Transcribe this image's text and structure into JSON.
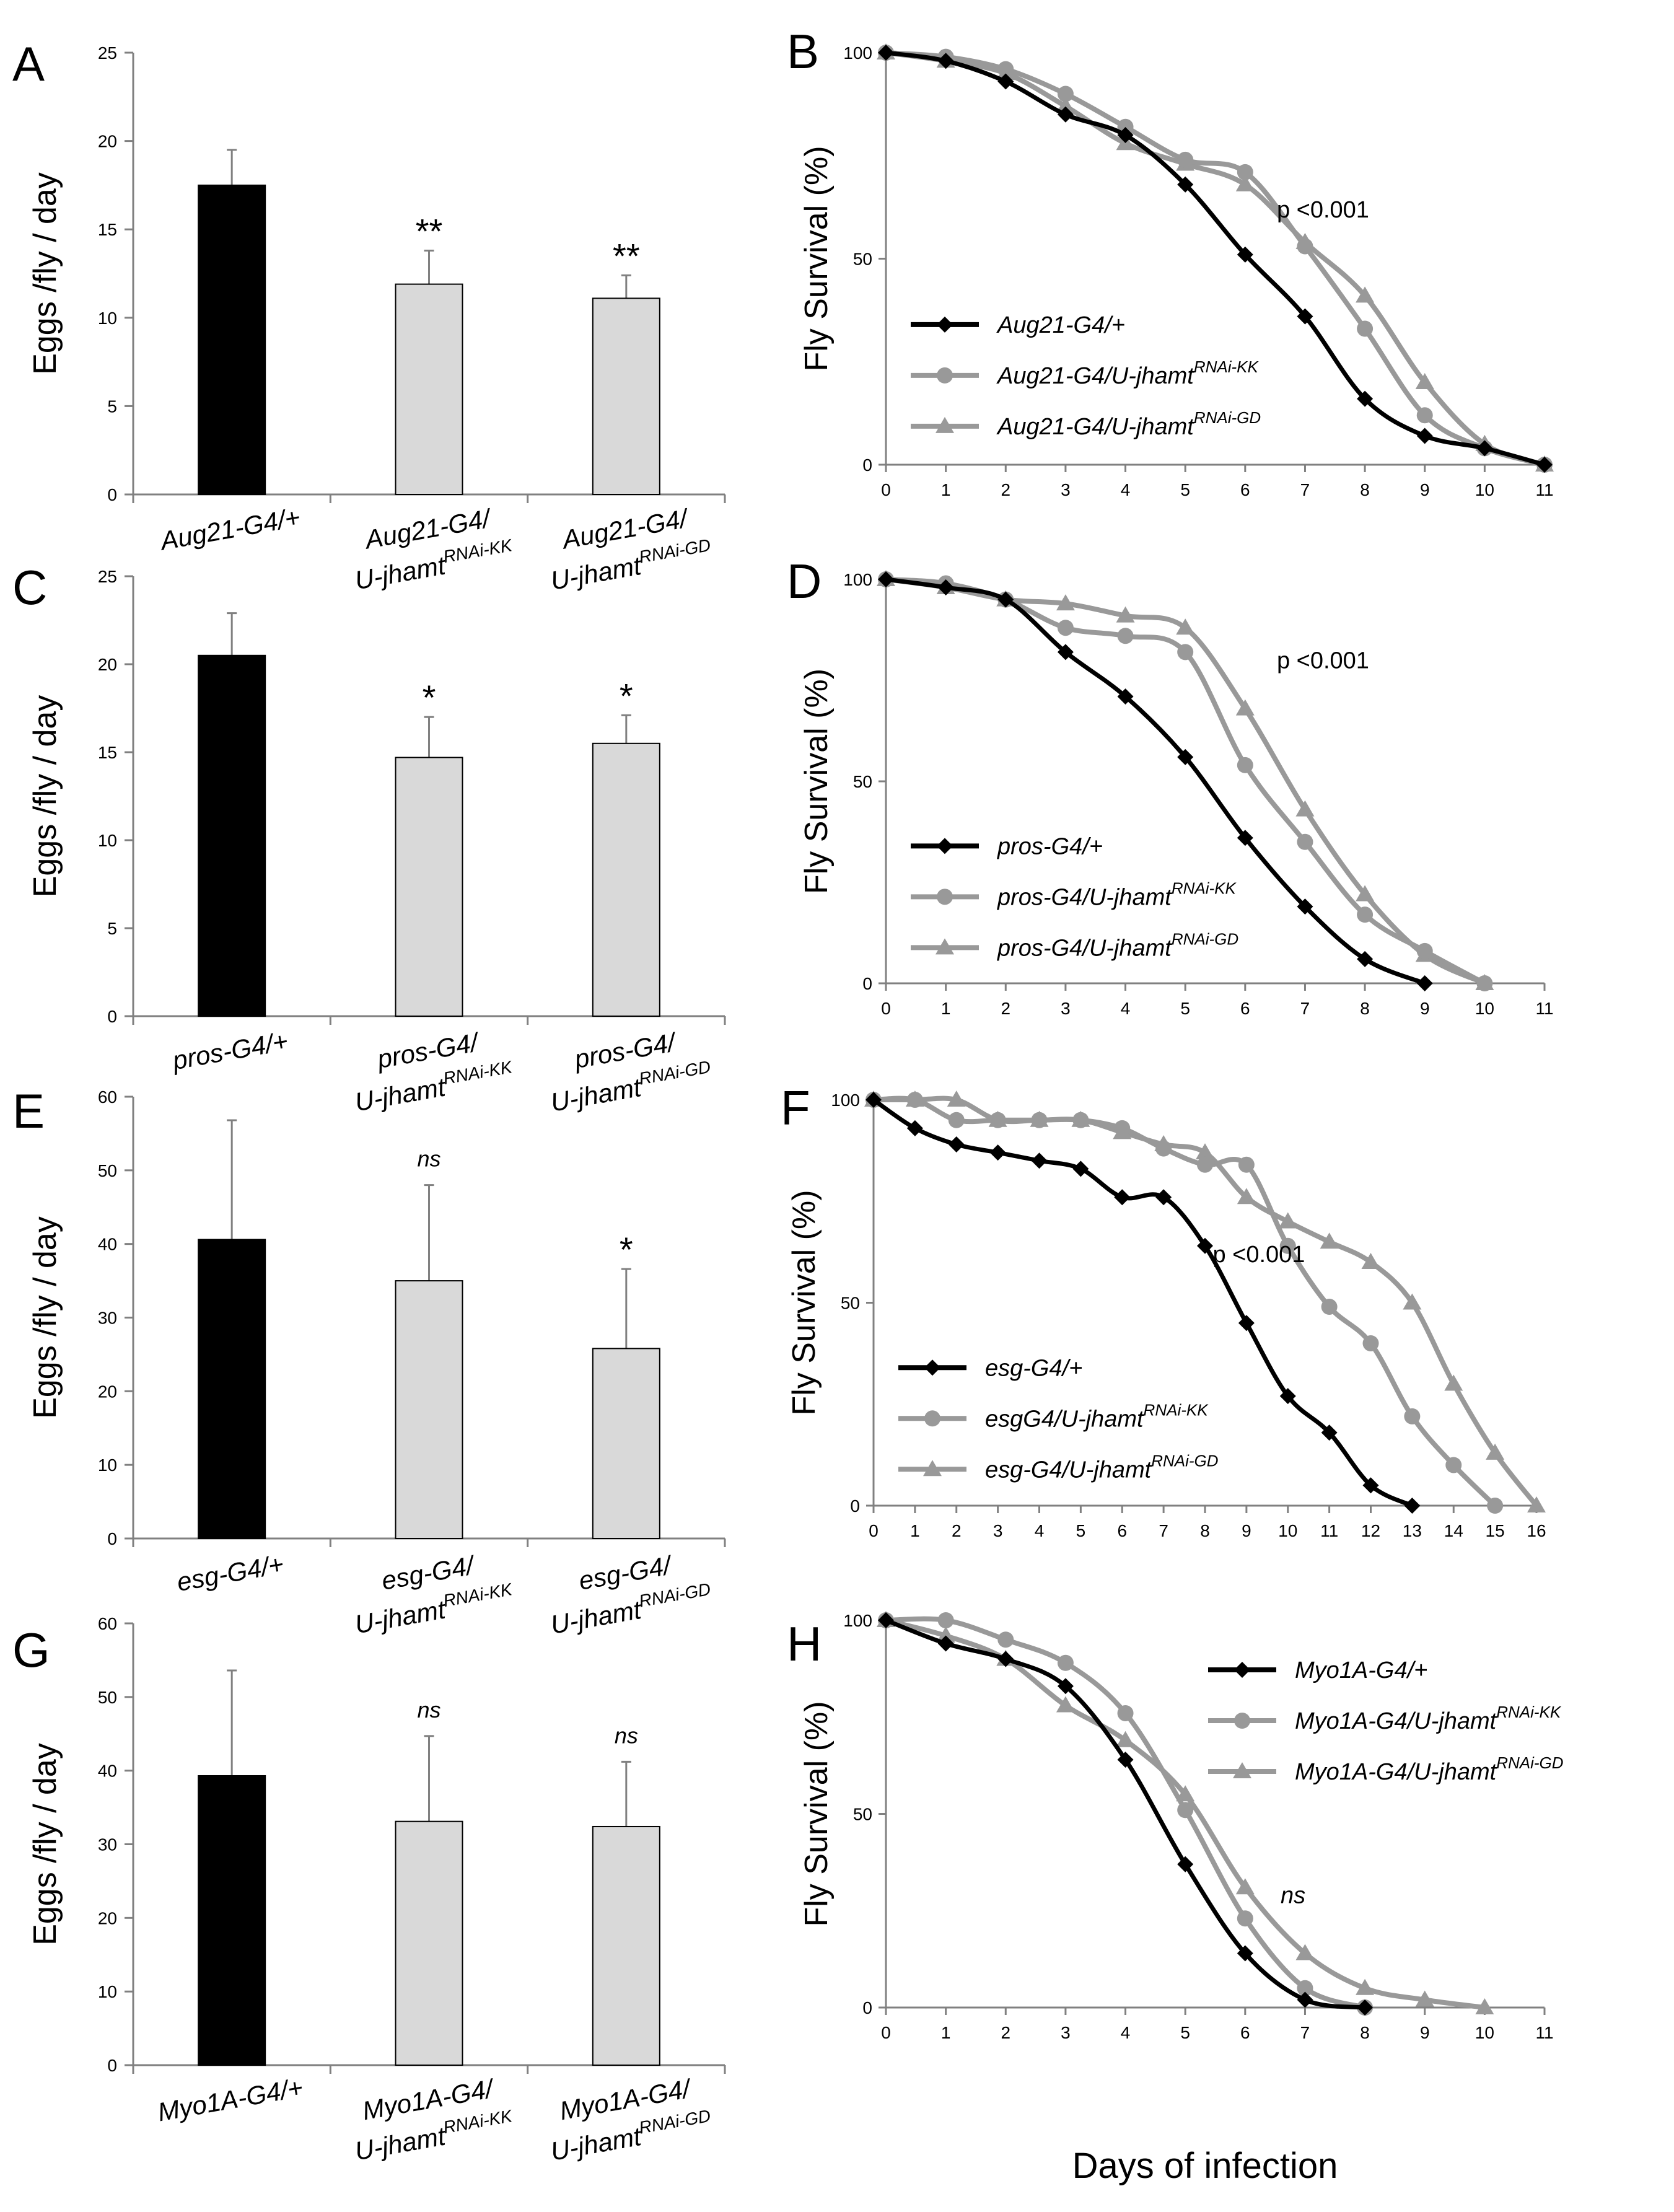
{
  "figure": {
    "x_axis_title": "Days of infection",
    "colors": {
      "control": "#000000",
      "kk": "#999999",
      "gd": "#999999",
      "bar_ctrl": "#000000",
      "bar_light": "#d9d9d9",
      "axis": "#808080"
    }
  },
  "chart_data": [
    {
      "type": "bar",
      "panel": "A",
      "title": "",
      "ylabel": "Eggs /fly / day",
      "xlabel": "",
      "ylim": [
        0,
        25
      ],
      "yticks": [
        0,
        5,
        10,
        15,
        20,
        25
      ],
      "categories": [
        {
          "line1": "Aug21-G4/+",
          "line2": "",
          "line2_sup": ""
        },
        {
          "line1": "Aug21-G4/",
          "line2": "U-jhamt",
          "line2_sup": "RNAi-KK"
        },
        {
          "line1": "Aug21-G4/",
          "line2": "U-jhamt",
          "line2_sup": "RNAi-GD"
        }
      ],
      "values": [
        17.5,
        11.9,
        11.1
      ],
      "errors": [
        2.0,
        1.9,
        1.3
      ],
      "significance": [
        "",
        "**",
        "**"
      ]
    },
    {
      "type": "line",
      "panel": "B",
      "title": "",
      "ylabel": "Fly Survival (%)",
      "xlabel": "",
      "ylim": [
        0,
        100
      ],
      "yticks": [
        0,
        50,
        100
      ],
      "xlim": [
        0,
        11
      ],
      "xticks": [
        0,
        1,
        2,
        3,
        4,
        5,
        6,
        7,
        8,
        9,
        10,
        11
      ],
      "annotation": "p <0.001",
      "legend_position": "bottom-left",
      "series": [
        {
          "name": "Aug21-G4/+",
          "sup": "",
          "marker": "diamond",
          "x": [
            0,
            1,
            2,
            3,
            4,
            5,
            6,
            7,
            8,
            9,
            10,
            11
          ],
          "values": [
            100,
            98,
            93,
            85,
            80,
            68,
            51,
            36,
            16,
            7,
            4,
            0
          ]
        },
        {
          "name": "Aug21-G4/U-jhamt",
          "sup": "RNAi-KK",
          "marker": "circle",
          "x": [
            0,
            1,
            2,
            3,
            4,
            5,
            6,
            7,
            8,
            9,
            10,
            11
          ],
          "values": [
            100,
            99,
            96,
            90,
            82,
            74,
            71,
            53,
            33,
            12,
            4,
            0
          ]
        },
        {
          "name": "Aug21-G4/U-jhamt",
          "sup": "RNAi-GD",
          "marker": "triangle",
          "x": [
            0,
            1,
            2,
            3,
            4,
            5,
            6,
            7,
            8,
            9,
            10,
            11
          ],
          "values": [
            100,
            98,
            95,
            87,
            78,
            73,
            68,
            54,
            41,
            20,
            5,
            0
          ]
        }
      ]
    },
    {
      "type": "bar",
      "panel": "C",
      "title": "",
      "ylabel": "Eggs /fly / day",
      "xlabel": "",
      "ylim": [
        0,
        25
      ],
      "yticks": [
        0,
        5,
        10,
        15,
        20,
        25
      ],
      "categories": [
        {
          "line1": "pros-G4/+",
          "line2": "",
          "line2_sup": ""
        },
        {
          "line1": "pros-G4/",
          "line2": "U-jhamt",
          "line2_sup": "RNAi-KK"
        },
        {
          "line1": "pros-G4/",
          "line2": "U-jhamt",
          "line2_sup": "RNAi-GD"
        }
      ],
      "values": [
        20.5,
        14.7,
        15.5
      ],
      "errors": [
        2.4,
        2.3,
        1.6
      ],
      "significance": [
        "",
        "*",
        "*"
      ]
    },
    {
      "type": "line",
      "panel": "D",
      "title": "",
      "ylabel": "Fly Survival (%)",
      "xlabel": "",
      "ylim": [
        0,
        100
      ],
      "yticks": [
        0,
        50,
        100
      ],
      "xlim": [
        0,
        11
      ],
      "xticks": [
        0,
        1,
        2,
        3,
        4,
        5,
        6,
        7,
        8,
        9,
        10,
        11
      ],
      "annotation": "p <0.001",
      "legend_position": "bottom-left",
      "series": [
        {
          "name": "pros-G4/+",
          "sup": "",
          "marker": "diamond",
          "x": [
            0,
            1,
            2,
            3,
            4,
            5,
            6,
            7,
            8,
            9
          ],
          "values": [
            100,
            98,
            95,
            82,
            71,
            56,
            36,
            19,
            6,
            0
          ]
        },
        {
          "name": "pros-G4/U-jhamt",
          "sup": "RNAi-KK",
          "marker": "circle",
          "x": [
            0,
            1,
            2,
            3,
            4,
            5,
            6,
            7,
            8,
            9,
            10
          ],
          "values": [
            100,
            99,
            95,
            88,
            86,
            82,
            54,
            35,
            17,
            8,
            0
          ]
        },
        {
          "name": "pros-G4/U-jhamt",
          "sup": "RNAi-GD",
          "marker": "triangle",
          "x": [
            0,
            1,
            2,
            3,
            4,
            5,
            6,
            7,
            8,
            9,
            10
          ],
          "values": [
            100,
            98,
            95,
            94,
            91,
            88,
            68,
            43,
            22,
            7,
            0
          ]
        }
      ]
    },
    {
      "type": "bar",
      "panel": "E",
      "title": "",
      "ylabel": "Eggs /fly / day",
      "xlabel": "",
      "ylim": [
        0,
        60
      ],
      "yticks": [
        0,
        10,
        20,
        30,
        40,
        50,
        60
      ],
      "categories": [
        {
          "line1": "esg-G4/+",
          "line2": "",
          "line2_sup": ""
        },
        {
          "line1": "esg-G4/",
          "line2": "U-jhamt",
          "line2_sup": "RNAi-KK"
        },
        {
          "line1": "esg-G4/",
          "line2": "U-jhamt",
          "line2_sup": "RNAi-GD"
        }
      ],
      "values": [
        40.6,
        35.0,
        25.8
      ],
      "errors": [
        16.2,
        13.0,
        10.8
      ],
      "significance": [
        "",
        "ns",
        "*"
      ]
    },
    {
      "type": "line",
      "panel": "F",
      "title": "",
      "ylabel": "Fly Survival (%)",
      "xlabel": "",
      "ylim": [
        0,
        100
      ],
      "yticks": [
        0,
        50,
        100
      ],
      "xlim": [
        0,
        16
      ],
      "xticks": [
        0,
        1,
        2,
        3,
        4,
        5,
        6,
        7,
        8,
        9,
        10,
        11,
        12,
        13,
        14,
        15,
        16
      ],
      "annotation": "p <0.001",
      "legend_position": "bottom-left",
      "series": [
        {
          "name": "esg-G4/+",
          "sup": "",
          "marker": "diamond",
          "x": [
            0,
            1,
            2,
            3,
            4,
            5,
            6,
            7,
            8,
            9,
            10,
            11,
            12,
            13
          ],
          "values": [
            100,
            93,
            89,
            87,
            85,
            83,
            76,
            76,
            64,
            45,
            27,
            18,
            5,
            0
          ]
        },
        {
          "name": "esgG4/U-jhamt",
          "sup": "RNAi-KK",
          "marker": "circle",
          "x": [
            0,
            1,
            2,
            3,
            4,
            5,
            6,
            7,
            8,
            9,
            10,
            11,
            12,
            13,
            14,
            15
          ],
          "values": [
            100,
            100,
            95,
            95,
            95,
            95,
            93,
            88,
            84,
            84,
            64,
            49,
            40,
            22,
            10,
            0
          ]
        },
        {
          "name": "esg-G4/U-jhamt",
          "sup": "RNAi-GD",
          "marker": "triangle",
          "x": [
            0,
            1,
            2,
            3,
            4,
            5,
            6,
            7,
            8,
            9,
            10,
            11,
            12,
            13,
            14,
            15,
            16
          ],
          "values": [
            100,
            100,
            100,
            95,
            95,
            95,
            92,
            89,
            87,
            76,
            70,
            65,
            60,
            50,
            30,
            13,
            0
          ]
        }
      ]
    },
    {
      "type": "bar",
      "panel": "G",
      "title": "",
      "ylabel": "Eggs /fly / day",
      "xlabel": "",
      "ylim": [
        0,
        60
      ],
      "yticks": [
        0,
        10,
        20,
        30,
        40,
        50,
        60
      ],
      "categories": [
        {
          "line1": "Myo1A-G4/+",
          "line2": "",
          "line2_sup": ""
        },
        {
          "line1": "Myo1A-G4/",
          "line2": "U-jhamt",
          "line2_sup": "RNAi-KK"
        },
        {
          "line1": "Myo1A-G4/",
          "line2": "U-jhamt",
          "line2_sup": "RNAi-GD"
        }
      ],
      "values": [
        39.3,
        33.1,
        32.4
      ],
      "errors": [
        14.3,
        11.6,
        8.8
      ],
      "significance": [
        "",
        "ns",
        "ns"
      ]
    },
    {
      "type": "line",
      "panel": "H",
      "title": "",
      "ylabel": "Fly Survival (%)",
      "xlabel": "Days of infection",
      "ylim": [
        0,
        100
      ],
      "yticks": [
        0,
        50,
        100
      ],
      "xlim": [
        0,
        11
      ],
      "xticks": [
        0,
        1,
        2,
        3,
        4,
        5,
        6,
        7,
        8,
        9,
        10,
        11
      ],
      "annotation": "ns",
      "legend_position": "top-right",
      "series": [
        {
          "name": "Myo1A-G4/+",
          "sup": "",
          "marker": "diamond",
          "x": [
            0,
            1,
            2,
            3,
            4,
            5,
            6,
            7,
            8
          ],
          "values": [
            100,
            94,
            90,
            83,
            64,
            37,
            14,
            2,
            0
          ]
        },
        {
          "name": "Myo1A-G4/U-jhamt",
          "sup": "RNAi-KK",
          "marker": "circle",
          "x": [
            0,
            1,
            2,
            3,
            4,
            5,
            6,
            7,
            8
          ],
          "values": [
            100,
            100,
            95,
            89,
            76,
            51,
            23,
            5,
            0
          ]
        },
        {
          "name": "Myo1A-G4/U-jhamt",
          "sup": "RNAi-GD",
          "marker": "triangle",
          "x": [
            0,
            1,
            2,
            3,
            4,
            5,
            6,
            7,
            8,
            9,
            10
          ],
          "values": [
            100,
            96,
            90,
            78,
            69,
            55,
            31,
            14,
            5,
            2,
            0
          ]
        }
      ]
    }
  ]
}
